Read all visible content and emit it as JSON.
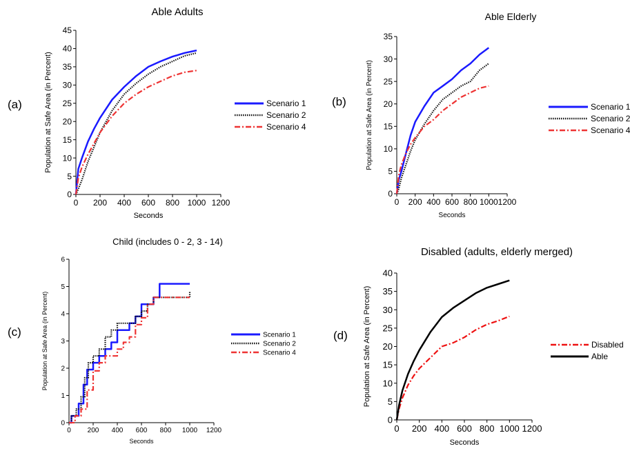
{
  "panel_labels": [
    "(a)",
    "(b)",
    "(c)",
    "(d)"
  ],
  "chart_data": [
    {
      "type": "line",
      "title": "Able Adults",
      "xlabel": "Seconds",
      "ylabel": "Population at Safe Area (in Percent)",
      "xlim": [
        0,
        1200
      ],
      "ylim": [
        0,
        45
      ],
      "xticks": [
        0,
        200,
        400,
        600,
        800,
        1000,
        1200
      ],
      "yticks": [
        0,
        5,
        10,
        15,
        20,
        25,
        30,
        35,
        40,
        45
      ],
      "legend_position": "right",
      "series": [
        {
          "name": "Scenario 1",
          "style": "solid",
          "color": "#1a1aff",
          "x": [
            0,
            20,
            50,
            100,
            150,
            200,
            300,
            400,
            500,
            600,
            700,
            800,
            900,
            1000
          ],
          "y": [
            0,
            7,
            10,
            14.5,
            18,
            21,
            26,
            29.5,
            32.5,
            35,
            36.5,
            37.8,
            38.8,
            39.5
          ]
        },
        {
          "name": "Scenario 2",
          "style": "dotted",
          "color": "#111111",
          "x": [
            0,
            20,
            50,
            100,
            150,
            200,
            300,
            400,
            500,
            600,
            700,
            800,
            900,
            1000
          ],
          "y": [
            0,
            1.5,
            4,
            9,
            13,
            17,
            23,
            27.5,
            30.5,
            33,
            35,
            36.5,
            38,
            38.8
          ]
        },
        {
          "name": "Scenario 4",
          "style": "dashdot",
          "color": "#ee3333",
          "x": [
            0,
            20,
            50,
            100,
            150,
            200,
            300,
            400,
            500,
            600,
            700,
            800,
            900,
            1000
          ],
          "y": [
            0,
            4.5,
            7.5,
            11,
            14,
            17,
            21.5,
            25,
            27.5,
            29.5,
            31,
            32.5,
            33.5,
            34
          ]
        }
      ]
    },
    {
      "type": "line",
      "title": "Able Elderly",
      "xlabel": "Seconds",
      "ylabel": "Population at Safe Area (in Percent)",
      "xlim": [
        0,
        1200
      ],
      "ylim": [
        0,
        35
      ],
      "xticks": [
        0,
        200,
        400,
        600,
        800,
        1000,
        1200
      ],
      "yticks": [
        0,
        5,
        10,
        15,
        20,
        25,
        30,
        35
      ],
      "legend_position": "right",
      "series": [
        {
          "name": "Scenario 1",
          "style": "solid",
          "color": "#1a1aff",
          "x": [
            0,
            20,
            50,
            100,
            150,
            200,
            300,
            400,
            500,
            600,
            700,
            800,
            900,
            1000
          ],
          "y": [
            0,
            3,
            5,
            9,
            13,
            16,
            19.5,
            22.5,
            24,
            25.5,
            27.5,
            29,
            31,
            32.5
          ]
        },
        {
          "name": "Scenario 2",
          "style": "dotted",
          "color": "#111111",
          "x": [
            0,
            20,
            50,
            100,
            150,
            200,
            300,
            400,
            500,
            600,
            700,
            800,
            900,
            1000
          ],
          "y": [
            0,
            1,
            3.5,
            6.5,
            9.5,
            12,
            15.5,
            18.5,
            21,
            22.5,
            24,
            25,
            27.5,
            29
          ]
        },
        {
          "name": "Scenario 4",
          "style": "dashdot",
          "color": "#ee3333",
          "x": [
            0,
            20,
            50,
            100,
            150,
            200,
            300,
            400,
            500,
            600,
            700,
            800,
            900,
            1000
          ],
          "y": [
            0,
            4,
            6.5,
            9,
            11,
            12.5,
            15,
            16.5,
            18.5,
            20,
            21.5,
            22.5,
            23.5,
            24
          ]
        }
      ]
    },
    {
      "type": "line",
      "title": "Child (includes 0 - 2, 3 - 14)",
      "xlabel": "Seconds",
      "ylabel": "Population at Safe Area (in Percent)",
      "xlim": [
        0,
        1200
      ],
      "ylim": [
        0,
        6
      ],
      "xticks": [
        0,
        200,
        400,
        600,
        800,
        1000,
        1200
      ],
      "yticks": [
        0,
        1,
        2,
        3,
        4,
        5,
        6
      ],
      "legend_position": "right",
      "series": [
        {
          "name": "Scenario 1",
          "style": "solid",
          "color": "#1a1aff",
          "step": true,
          "x": [
            0,
            20,
            80,
            120,
            150,
            200,
            250,
            300,
            350,
            400,
            450,
            500,
            550,
            600,
            650,
            700,
            750,
            1000
          ],
          "y": [
            0,
            0.25,
            0.7,
            1.4,
            1.95,
            2.2,
            2.45,
            2.7,
            2.95,
            3.4,
            3.4,
            3.65,
            3.9,
            4.35,
            4.35,
            4.6,
            5.1,
            5.1
          ]
        },
        {
          "name": "Scenario 2",
          "style": "dotted",
          "color": "#111111",
          "step": true,
          "x": [
            0,
            20,
            60,
            100,
            130,
            160,
            200,
            250,
            300,
            350,
            400,
            450,
            500,
            550,
            600,
            650,
            700,
            1000
          ],
          "y": [
            0,
            0.25,
            0.5,
            0.95,
            1.65,
            2.2,
            2.45,
            2.7,
            3.15,
            3.4,
            3.65,
            3.65,
            3.65,
            3.9,
            4.1,
            4.35,
            4.6,
            4.8
          ]
        },
        {
          "name": "Scenario 4",
          "style": "dashdot",
          "color": "#ee3333",
          "step": true,
          "x": [
            0,
            50,
            100,
            150,
            200,
            250,
            300,
            350,
            400,
            450,
            500,
            550,
            600,
            650,
            700,
            1000
          ],
          "y": [
            0,
            0.25,
            0.5,
            1.2,
            1.9,
            2.2,
            2.45,
            2.45,
            2.7,
            2.95,
            3.15,
            3.6,
            3.85,
            4.35,
            4.6,
            4.6
          ]
        }
      ]
    },
    {
      "type": "line",
      "title": "Disabled (adults, elderly merged)",
      "xlabel": "Seconds",
      "ylabel": "Population at Safe Area (in Percent)",
      "xlim": [
        0,
        1200
      ],
      "ylim": [
        0,
        40
      ],
      "xticks": [
        0,
        200,
        400,
        600,
        800,
        1000,
        1200
      ],
      "yticks": [
        0,
        5,
        10,
        15,
        20,
        25,
        30,
        35,
        40
      ],
      "legend_position": "right",
      "series": [
        {
          "name": "Disabled",
          "style": "dashdot",
          "color": "#ee1111",
          "x": [
            0,
            20,
            50,
            100,
            150,
            200,
            300,
            400,
            500,
            600,
            700,
            800,
            900,
            1000
          ],
          "y": [
            0,
            3,
            6,
            9.5,
            12,
            14,
            17,
            20,
            21,
            22.5,
            24.5,
            26,
            27,
            28.2
          ]
        },
        {
          "name": "Able",
          "style": "solid",
          "color": "#000000",
          "x": [
            0,
            20,
            50,
            100,
            150,
            200,
            300,
            400,
            500,
            600,
            700,
            800,
            900,
            1000
          ],
          "y": [
            0,
            4,
            8,
            12.5,
            16,
            19,
            24,
            28,
            30.5,
            32.5,
            34.5,
            36,
            37,
            38
          ]
        }
      ]
    }
  ]
}
